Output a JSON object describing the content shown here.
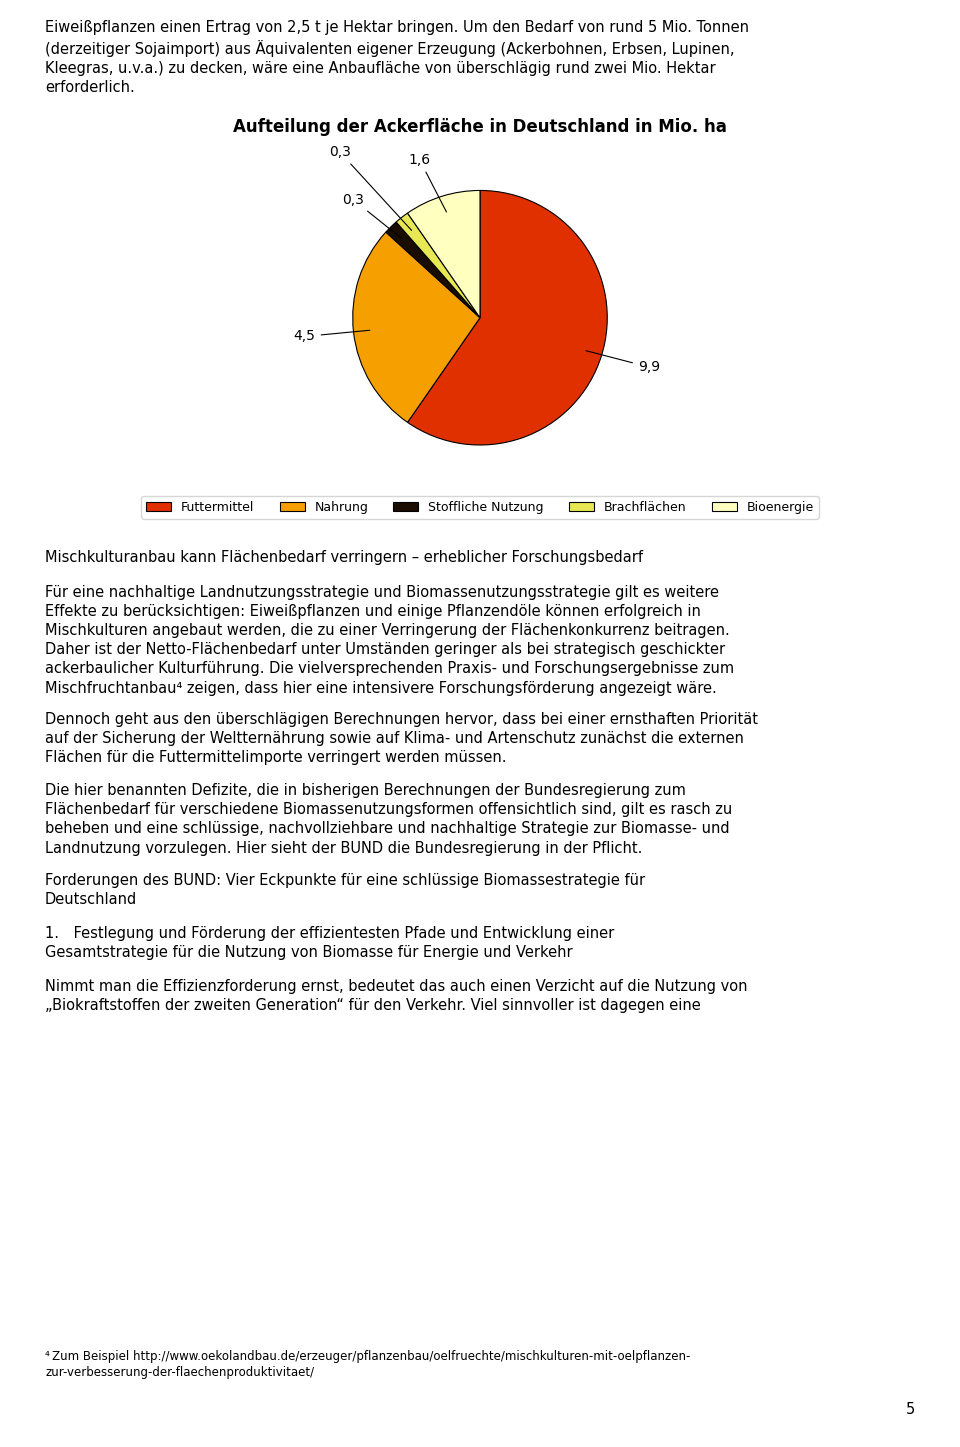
{
  "chart_data": {
    "type": "pie",
    "title": "Aufteilung der Ackerfläche in Deutschland in Mio. ha",
    "categories": [
      "Futtermittel",
      "Nahrung",
      "Stoffliche Nutzung",
      "Brachflächen",
      "Bioenergie"
    ],
    "values": [
      9.9,
      4.5,
      0.3,
      0.3,
      1.6
    ],
    "value_labels": [
      "9,9",
      "4,5",
      "0,3",
      "0,3",
      "1,6"
    ],
    "colors": [
      "#E03000",
      "#F5A000",
      "#1a0d00",
      "#E8E855",
      "#FFFFC0"
    ],
    "legend": "lower center",
    "data_labels": true,
    "annotations": [
      "Eiweißpflanzen einen Ertrag von 2,5 t je Hektar bringen. Um den Bedarf von rund 5 Mio. Tonnen\n(derzeitiger Sojaimport) aus Äquivalenten eigener Erzeugung (Ackerbohnen, Erbsen, Lupinen,\nKleegras, u.v.a.) zu decken, wäre eine Anbaufläche von überschlägig rund zwei Mio. Hektar\nerforderlich.",
      "Mischkulturanbau kann Flächenbedarf verringern – erheblicher Forschungsbedarf",
      "Für eine nachhaltige Landnutzungsstrategie und Biomassenutzungsstrategie gilt es weitere\nEffekte zu berücksichtigen: Eiweißpflanzen und einige Pflanzendöle können erfolgreich in\nMischkulturen angebaut werden, die zu einer Verringerung der Flächenkonkurrenz beitragen.\nDaher ist der Netto-Flächenbedarf unter Umständen geringer als bei strategisch geschickter\nackerbaulicher Kulturführung. Die vielversprechenden Praxis- und Forschungsergebnisse zum\nMischfruchtanbau⁴ zeigen, dass hier eine intensivere Forschungsförderung angezeigt wäre.",
      "Dennoch geht aus den überschlägigen Berechnungen hervor, dass bei einer ernsthaften Priorität\nauf der Sicherung der Weltternährung sowie auf Klima- und Artenschutz zunächst die externen\nFlächen für die Futtermittelimporte verringert werden müssen.",
      "Die hier benannten Defizite, die in bisherigen Berechnungen der Bundesregierung zum\nFlächenbedarf für verschiedene Biomassenutzungsformen offensichtlich sind, gilt es rasch zu\nbeheben und eine schlüssige, nachvollziehbare und nachhaltige Strategie zur Biomasse- und\nLandnutzung vorzulegen. Hier sieht der BUND die Bundesregierung in der Pflicht.",
      "Forderungen des BUND: Vier Eckpunkte für eine schlüssige Biomassestrategie für\nDeutschland",
      "1. Festlegung und Förderung der effizientesten Pfade und Entwicklung einer\nGesamtstrategie für die Nutzung von Biomasse für Energie und Verkehr",
      "Nimmt man die Effizienzforderung ernst, bedeutet das auch einen Verzicht auf die Nutzung von\n„Biokraftstoffen der zweiten Generation“ für den Verkehr. Viel sinnvoller ist dagegen eine",
      "⁴ Zum Beispiel http://www.oekolandbau.de/erzeuger/pflanzenbau/oelfruechte/mischkulturen-mit-oelpflanzen-\nzur-verbesserung-der-flaechenproduktivitaet/",
      "5"
    ]
  }
}
